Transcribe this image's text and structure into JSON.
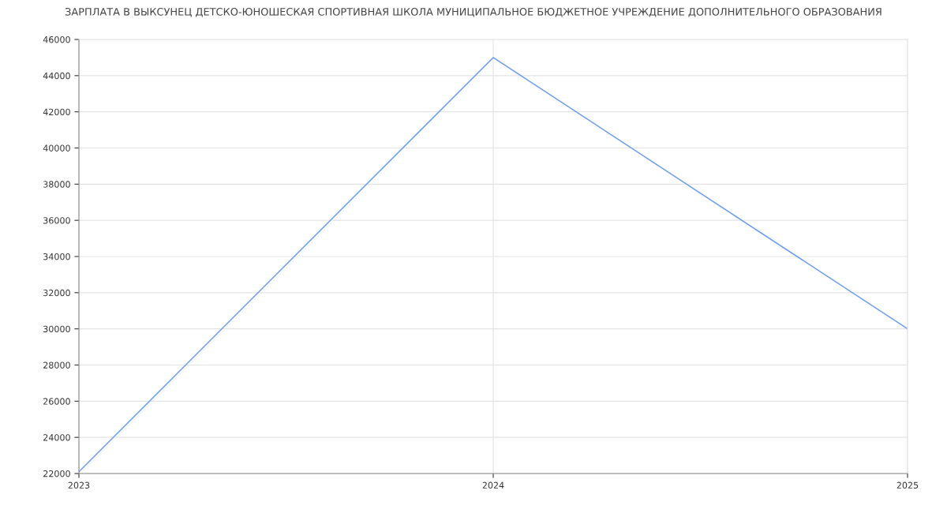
{
  "chart_data": {
    "type": "line",
    "title": "ЗАРПЛАТА В ВЫКСУНЕЦ ДЕТСКО-ЮНОШЕСКАЯ СПОРТИВНАЯ ШКОЛА МУНИЦИПАЛЬНОЕ БЮДЖЕТНОЕ УЧРЕЖДЕНИЕ ДОПОЛНИТЕЛЬНОГО ОБРАЗОВАНИЯ",
    "x": [
      2023,
      2024,
      2025
    ],
    "series": [
      {
        "color": "#6b9cf0",
        "values": [
          22100,
          45000,
          30000
        ]
      }
    ],
    "xlim": [
      2023,
      2025
    ],
    "xticks": [
      2023,
      2024,
      2025
    ],
    "ylim": [
      22000,
      46000
    ],
    "yticks": [
      22000,
      24000,
      26000,
      28000,
      30000,
      32000,
      34000,
      36000,
      38000,
      40000,
      42000,
      44000,
      46000
    ],
    "grid": true,
    "marker": "none",
    "line_style": "solid",
    "legend": false
  }
}
